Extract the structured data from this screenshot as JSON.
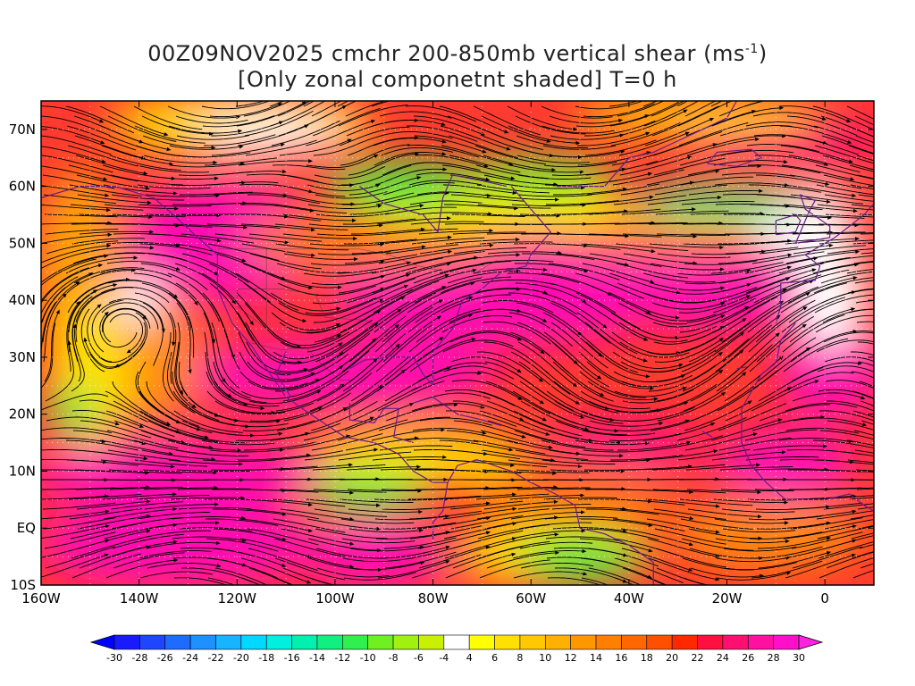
{
  "title": {
    "line1": "00Z09NOV2025 cmchr 200-850mb vertical shear (ms",
    "line1_sup": "-1",
    "line1_end": ")",
    "line2": "[Only zonal componetnt shaded] T=0 h"
  },
  "map": {
    "lon_range": [
      -160,
      10
    ],
    "lat_range": [
      -10,
      75
    ],
    "x_ticks": [
      {
        "lon": -160,
        "label": "160W"
      },
      {
        "lon": -140,
        "label": "140W"
      },
      {
        "lon": -120,
        "label": "120W"
      },
      {
        "lon": -100,
        "label": "100W"
      },
      {
        "lon": -80,
        "label": "80W"
      },
      {
        "lon": -60,
        "label": "60W"
      },
      {
        "lon": -40,
        "label": "40W"
      },
      {
        "lon": -20,
        "label": "20W"
      },
      {
        "lon": 0,
        "label": "0"
      }
    ],
    "y_ticks": [
      {
        "lat": 70,
        "label": "70N"
      },
      {
        "lat": 60,
        "label": "60N"
      },
      {
        "lat": 50,
        "label": "50N"
      },
      {
        "lat": 40,
        "label": "40N"
      },
      {
        "lat": 30,
        "label": "30N"
      },
      {
        "lat": 20,
        "label": "20N"
      },
      {
        "lat": 10,
        "label": "10N"
      },
      {
        "lat": 0,
        "label": "EQ"
      },
      {
        "lat": -10,
        "label": "10S"
      }
    ]
  },
  "colorbar": {
    "labels": [
      "-30",
      "-28",
      "-26",
      "-24",
      "-22",
      "-20",
      "-18",
      "-16",
      "-14",
      "-12",
      "-10",
      "-8",
      "-6",
      "-4",
      "4",
      "6",
      "8",
      "10",
      "12",
      "14",
      "16",
      "18",
      "20",
      "22",
      "24",
      "26",
      "28",
      "30"
    ],
    "colors": [
      "#1a1aff",
      "#1f46ff",
      "#1e6cff",
      "#1e90ff",
      "#18b4ff",
      "#00d8ff",
      "#00f0e0",
      "#00f0b0",
      "#10f080",
      "#30f050",
      "#70f020",
      "#a0f010",
      "#c8f000",
      "#ffffff",
      "#ffff00",
      "#ffe000",
      "#ffc800",
      "#ffb000",
      "#ff9800",
      "#ff8000",
      "#ff6800",
      "#ff5000",
      "#ff2800",
      "#ff1040",
      "#ff1070",
      "#ff10a0",
      "#ff10c8"
    ],
    "low_color": "#0000ff",
    "high_color": "#ff20e0"
  }
}
